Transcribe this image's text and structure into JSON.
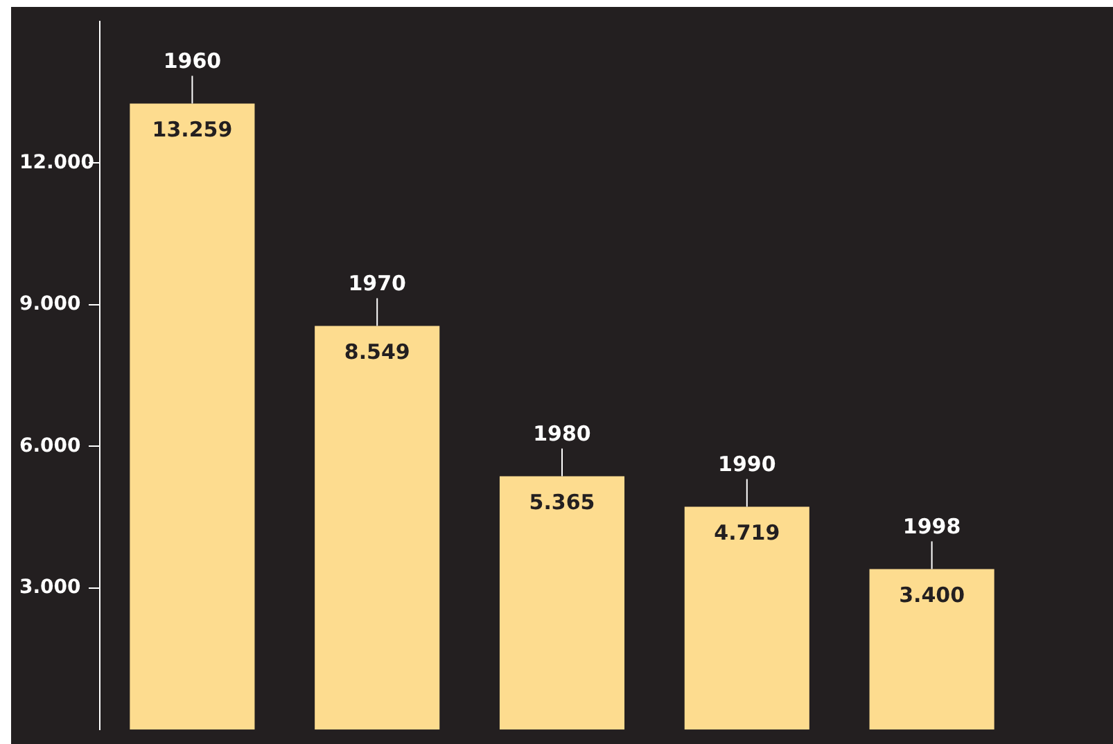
{
  "chart_data": {
    "type": "bar",
    "categories": [
      null,
      null,
      null,
      null,
      null
    ],
    "annotations": [
      "1960",
      "1970",
      "1980",
      "1990",
      "1998"
    ],
    "values": [
      13259,
      8549,
      5365,
      4719,
      3400
    ],
    "value_labels": [
      "13.259",
      "8.549",
      "5.365",
      "4.719",
      "3.400"
    ],
    "color": "#fddc8f",
    "ylim": [
      0,
      15000
    ],
    "yticks": [
      {
        "value": 3000,
        "label": "3.000"
      },
      {
        "value": 6000,
        "label": "6.000"
      },
      {
        "value": 9000,
        "label": "9.000"
      },
      {
        "value": 12000,
        "label": "12.000"
      }
    ],
    "legend": false
  }
}
